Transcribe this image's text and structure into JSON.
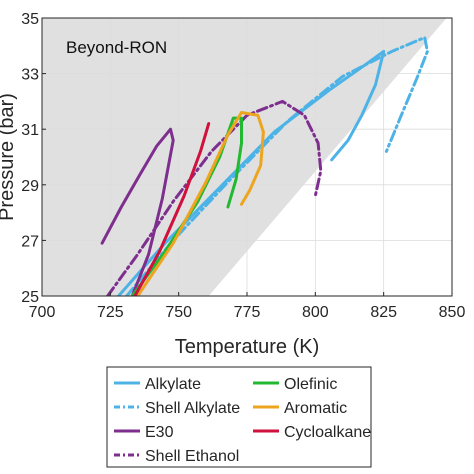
{
  "chart_data": {
    "type": "line",
    "xlabel": "Temperature (K)",
    "ylabel": "Pressure (bar)",
    "xlim": [
      700,
      850
    ],
    "ylim": [
      25,
      35
    ],
    "xticks": [
      "700",
      "725",
      "750",
      "775",
      "800",
      "825",
      "850"
    ],
    "yticks": [
      "25",
      "27",
      "29",
      "31",
      "33",
      "35"
    ],
    "grid": true,
    "annotations": [
      {
        "text": "Beyond-RON",
        "region": "shaded gray region, upper-left"
      }
    ],
    "shaded_region": {
      "fill": "#e0e0e0",
      "polygon": [
        [
          700,
          25
        ],
        [
          761,
          25
        ],
        [
          848,
          35
        ],
        [
          700,
          35
        ]
      ]
    },
    "legend": {
      "placement": "below-plot",
      "columns": 2
    },
    "series": [
      {
        "name": "Alkylate",
        "color": "#4db3e6",
        "dash": "solid",
        "points": [
          [
            728,
            25
          ],
          [
            745,
            26.9
          ],
          [
            765,
            28.9
          ],
          [
            785,
            30.9
          ],
          [
            805,
            32.4
          ],
          [
            818,
            33.3
          ],
          [
            825,
            33.8
          ],
          [
            822,
            32.6
          ],
          [
            817,
            31.5
          ],
          [
            812,
            30.6
          ],
          [
            806,
            29.9
          ]
        ]
      },
      {
        "name": "Shell Alkylate",
        "color": "#4db3e6",
        "dash": "dash-dot",
        "points": [
          [
            731,
            25
          ],
          [
            748,
            27
          ],
          [
            768,
            29.1
          ],
          [
            790,
            31.3
          ],
          [
            810,
            32.9
          ],
          [
            828,
            33.8
          ],
          [
            840,
            34.3
          ],
          [
            841,
            33.8
          ],
          [
            837,
            32.8
          ],
          [
            831,
            31.4
          ],
          [
            826,
            30.2
          ]
        ]
      },
      {
        "name": "E30",
        "color": "#7e2f8e",
        "dash": "solid",
        "points": [
          [
            722,
            26.9
          ],
          [
            729,
            28.2
          ],
          [
            736,
            29.4
          ],
          [
            742,
            30.4
          ],
          [
            747,
            31.0
          ],
          [
            748,
            30.6
          ],
          [
            744,
            28.5
          ],
          [
            739,
            26.5
          ],
          [
            733,
            25
          ]
        ]
      },
      {
        "name": "Shell Ethanol",
        "color": "#7e2f8e",
        "dash": "dash-dot",
        "points": [
          [
            724,
            25
          ],
          [
            735,
            26.5
          ],
          [
            748,
            28.4
          ],
          [
            762,
            30.2
          ],
          [
            775,
            31.5
          ],
          [
            788,
            32.0
          ],
          [
            796,
            31.5
          ],
          [
            801,
            30.5
          ],
          [
            802,
            29.5
          ],
          [
            800,
            28.6
          ]
        ]
      },
      {
        "name": "Olefinic",
        "color": "#21b832",
        "dash": "solid",
        "points": [
          [
            733,
            25
          ],
          [
            745,
            26.6
          ],
          [
            757,
            28.4
          ],
          [
            765,
            30.0
          ],
          [
            770,
            31.4
          ],
          [
            773,
            31.4
          ],
          [
            773,
            30.5
          ],
          [
            771,
            29.2
          ],
          [
            768,
            28.2
          ]
        ]
      },
      {
        "name": "Aromatic",
        "color": "#eda520",
        "dash": "solid",
        "points": [
          [
            735,
            25
          ],
          [
            748,
            26.9
          ],
          [
            760,
            29.1
          ],
          [
            768,
            30.8
          ],
          [
            773,
            31.6
          ],
          [
            779,
            31.5
          ],
          [
            781,
            30.9
          ],
          [
            780,
            29.7
          ],
          [
            776,
            28.8
          ],
          [
            773,
            28.3
          ]
        ]
      },
      {
        "name": "Cycloalkane",
        "color": "#d0103d",
        "dash": "solid",
        "points": [
          [
            734,
            25
          ],
          [
            743,
            26.6
          ],
          [
            752,
            28.6
          ],
          [
            758,
            30.2
          ],
          [
            761,
            31.2
          ]
        ]
      }
    ]
  }
}
